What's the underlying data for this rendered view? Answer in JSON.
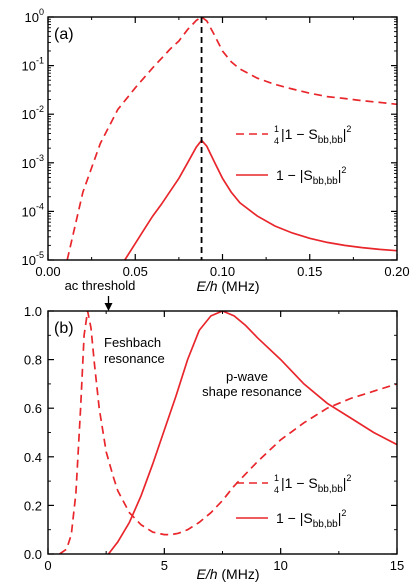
{
  "colors": {
    "series": "#e8262b",
    "marker": "#000000"
  },
  "chart_data": [
    {
      "type": "line",
      "panel_label": "(a)",
      "xlabel": {
        "italic": "E/h",
        "unit": " (MHz)"
      },
      "ylabel": "",
      "xlim": [
        0.0,
        0.2
      ],
      "ylim": [
        1e-05,
        1
      ],
      "yscale": "log",
      "x_ticks": [
        "0.00",
        "0.05",
        "0.10",
        "0.15",
        "0.20"
      ],
      "y_ticks": [
        {
          "base": "10",
          "exp": "-5"
        },
        {
          "base": "10",
          "exp": "-4"
        },
        {
          "base": "10",
          "exp": "-3"
        },
        {
          "base": "10",
          "exp": "-2"
        },
        {
          "base": "10",
          "exp": "-1"
        },
        {
          "base": "10",
          "exp": "0"
        }
      ],
      "vertical_marker_x": 0.088,
      "legend_position": "right",
      "legend": [
        {
          "style": "dashed",
          "frac_num": "1",
          "frac_den": "4",
          "main": "|1 − S",
          "sub": "bb,bb",
          "post": "|",
          "sup": "2"
        },
        {
          "style": "solid",
          "frac_num": "",
          "frac_den": "",
          "main": "1 − |S",
          "sub": "bb,bb",
          "post": "|",
          "sup": "2"
        }
      ],
      "series": [
        {
          "style": "dashed",
          "x": [
            0.011,
            0.02,
            0.03,
            0.04,
            0.05,
            0.06,
            0.07,
            0.075,
            0.08,
            0.085,
            0.088,
            0.091,
            0.095,
            0.1,
            0.105,
            0.11,
            0.12,
            0.13,
            0.14,
            0.15,
            0.16,
            0.17,
            0.18,
            0.19,
            0.2
          ],
          "y": [
            1e-05,
            0.00025,
            0.0025,
            0.0125,
            0.035,
            0.09,
            0.22,
            0.32,
            0.55,
            0.85,
            1.0,
            0.83,
            0.45,
            0.2,
            0.12,
            0.085,
            0.055,
            0.041,
            0.033,
            0.027,
            0.023,
            0.021,
            0.019,
            0.0175,
            0.016
          ]
        },
        {
          "style": "solid",
          "x": [
            0.044,
            0.05,
            0.055,
            0.06,
            0.065,
            0.07,
            0.075,
            0.08,
            0.085,
            0.088,
            0.091,
            0.095,
            0.1,
            0.105,
            0.11,
            0.12,
            0.13,
            0.14,
            0.15,
            0.16,
            0.17,
            0.18,
            0.19,
            0.2
          ],
          "y": [
            1e-05,
            2.2e-05,
            4.2e-05,
            8e-05,
            0.00014,
            0.00026,
            0.00048,
            0.001,
            0.0021,
            0.0029,
            0.0022,
            0.0011,
            0.00048,
            0.00025,
            0.00015,
            8e-05,
            5e-05,
            3.6e-05,
            2.8e-05,
            2.3e-05,
            2e-05,
            1.8e-05,
            1.65e-05,
            1.55e-05
          ]
        }
      ]
    },
    {
      "type": "line",
      "panel_label": "(b)",
      "xlabel": {
        "italic": "E/h",
        "unit": " (MHz)"
      },
      "ylabel": "",
      "xlim": [
        0,
        15
      ],
      "ylim": [
        0.0,
        1.0
      ],
      "x_ticks": [
        "0",
        "5",
        "10",
        "15"
      ],
      "y_ticks": [
        "0.0",
        "0.2",
        "0.4",
        "0.6",
        "0.8",
        "1.0"
      ],
      "annotations": {
        "arrow_label": "ac threshold",
        "arrow_x": 2.6,
        "feshbach": [
          "Feshbach",
          "resonance"
        ],
        "pwave": [
          "p-wave",
          "shape resonance"
        ]
      },
      "legend_position": "lower right",
      "legend": [
        {
          "style": "dashed",
          "frac_num": "1",
          "frac_den": "4",
          "main": "|1 − S",
          "sub": "bb,bb",
          "post": "|",
          "sup": "2"
        },
        {
          "style": "solid",
          "frac_num": "",
          "frac_den": "",
          "main": "1 − |S",
          "sub": "bb,bb",
          "post": "|",
          "sup": "2"
        }
      ],
      "series": [
        {
          "style": "dashed",
          "x": [
            0.5,
            0.8,
            1.0,
            1.2,
            1.4,
            1.55,
            1.7,
            1.85,
            2.0,
            2.2,
            2.5,
            2.8,
            3.0,
            3.5,
            4.0,
            4.5,
            5.0,
            5.3,
            5.6,
            6.0,
            6.5,
            7.0,
            7.5,
            8.0,
            9.0,
            10.0,
            11.0,
            12.0,
            13.0,
            14.0,
            15.0
          ],
          "y": [
            0.0,
            0.02,
            0.08,
            0.25,
            0.6,
            0.9,
            1.0,
            0.93,
            0.78,
            0.6,
            0.42,
            0.32,
            0.26,
            0.17,
            0.12,
            0.09,
            0.08,
            0.08,
            0.085,
            0.1,
            0.13,
            0.17,
            0.22,
            0.28,
            0.38,
            0.47,
            0.54,
            0.6,
            0.64,
            0.67,
            0.7
          ]
        },
        {
          "style": "solid",
          "x": [
            2.6,
            3.0,
            3.5,
            4.0,
            4.5,
            5.0,
            5.5,
            6.0,
            6.5,
            7.0,
            7.5,
            8.0,
            8.5,
            9.0,
            10.0,
            11.0,
            12.0,
            13.0,
            14.0,
            15.0
          ],
          "y": [
            0.0,
            0.05,
            0.13,
            0.24,
            0.37,
            0.51,
            0.65,
            0.8,
            0.92,
            0.98,
            1.0,
            0.98,
            0.94,
            0.89,
            0.8,
            0.7,
            0.62,
            0.56,
            0.5,
            0.45
          ]
        }
      ]
    }
  ]
}
